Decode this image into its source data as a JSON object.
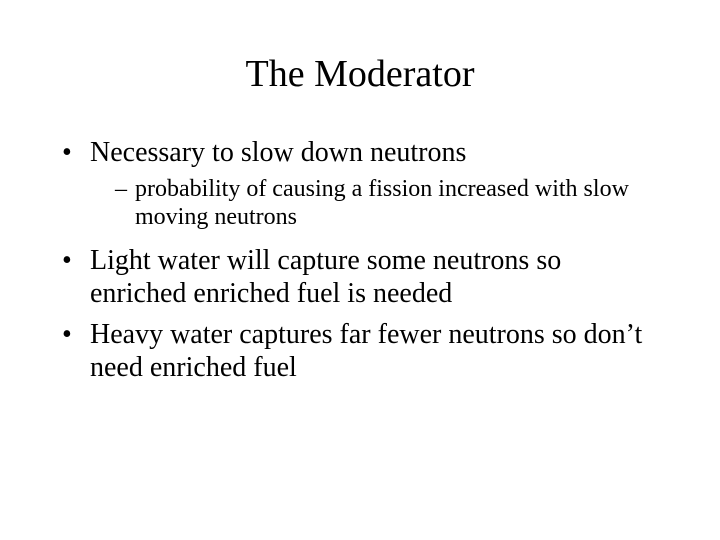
{
  "title": "The Moderator",
  "bullets": {
    "b1": "Necessary to slow down neutrons",
    "b1_sub1": "probability of causing a fission increased with slow moving neutrons",
    "b2": "Light water will capture some neutrons so enriched enriched fuel is needed",
    "b3": "Heavy water captures far fewer neutrons so don’t need enriched fuel"
  },
  "colors": {
    "background": "#ffffff",
    "text": "#000000"
  },
  "typography": {
    "family": "Times New Roman",
    "title_fontsize_pt": 38,
    "body_fontsize_pt": 28,
    "sub_fontsize_pt": 24
  }
}
